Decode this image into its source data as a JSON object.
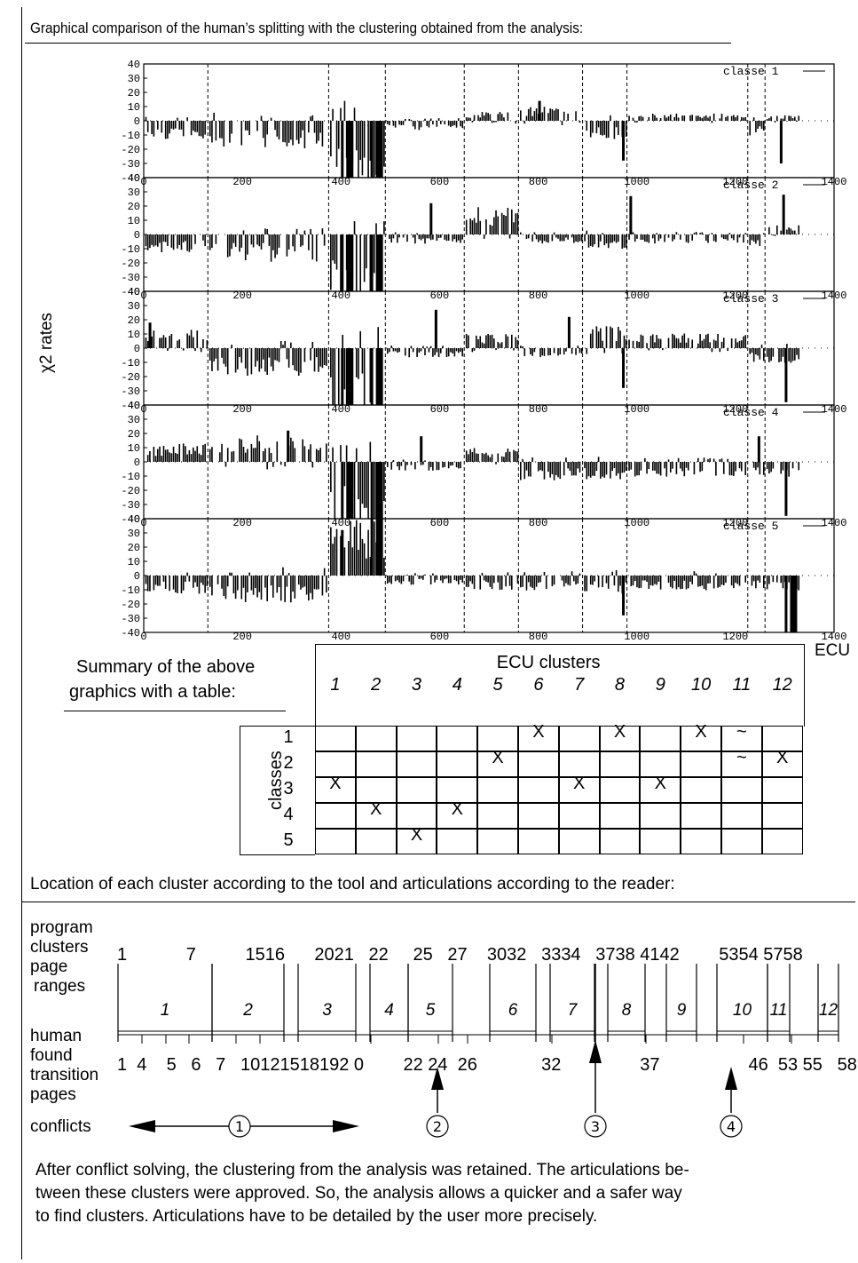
{
  "header": {
    "title": "Graphical comparison of the human’s splitting with the clustering obtained from the analysis:"
  },
  "chart_data": {
    "type": "bar",
    "ylabel": "χ2 rates",
    "xlabel": "ECU",
    "xlim": [
      0,
      1400
    ],
    "ylim": [
      -40,
      40
    ],
    "x_ticks": [
      0,
      200,
      400,
      600,
      800,
      1000,
      1200,
      1400
    ],
    "y_ticks": [
      40,
      30,
      20,
      10,
      0,
      -10,
      -20,
      -30,
      -40
    ],
    "cluster_boundaries": [
      130,
      375,
      490,
      650,
      760,
      890,
      980,
      1225,
      1260
    ],
    "panels": [
      {
        "name": "classe 1",
        "level_by_cluster": [
          -10,
          -15,
          -40,
          -5,
          5,
          8,
          -10,
          4,
          -8,
          3,
          -25,
          -5,
          3
        ],
        "spikes": [
          {
            "x": 400,
            "y": -40
          },
          {
            "x": 460,
            "y": -40
          },
          {
            "x": 800,
            "y": 14
          },
          {
            "x": 970,
            "y": -28
          },
          {
            "x": 1290,
            "y": -30
          }
        ]
      },
      {
        "name": "classe 2",
        "level_by_cluster": [
          -10,
          -15,
          -40,
          -5,
          15,
          -5,
          -8,
          -5,
          -8,
          5,
          -8,
          -8,
          12
        ],
        "spikes": [
          {
            "x": 400,
            "y": -40
          },
          {
            "x": 460,
            "y": -40
          },
          {
            "x": 580,
            "y": 22
          },
          {
            "x": 985,
            "y": 27
          },
          {
            "x": 1295,
            "y": 28
          }
        ]
      },
      {
        "name": "classe 3",
        "level_by_cluster": [
          10,
          -15,
          -40,
          -5,
          8,
          -5,
          12,
          8,
          -8,
          -8,
          -10,
          -8,
          -10
        ],
        "spikes": [
          {
            "x": 10,
            "y": 18
          },
          {
            "x": 400,
            "y": -40
          },
          {
            "x": 460,
            "y": -40
          },
          {
            "x": 590,
            "y": 27
          },
          {
            "x": 860,
            "y": 22
          },
          {
            "x": 970,
            "y": -28
          },
          {
            "x": 1300,
            "y": -38
          }
        ]
      },
      {
        "name": "classe 4",
        "level_by_cluster": [
          10,
          15,
          -40,
          -5,
          8,
          -10,
          -10,
          -8,
          -8,
          -8,
          -10,
          5,
          -10
        ],
        "spikes": [
          {
            "x": 290,
            "y": 22
          },
          {
            "x": 400,
            "y": -40
          },
          {
            "x": 460,
            "y": -40
          },
          {
            "x": 560,
            "y": 18
          },
          {
            "x": 1245,
            "y": 18
          },
          {
            "x": 1300,
            "y": -38
          }
        ]
      },
      {
        "name": "classe 5",
        "level_by_cluster": [
          -10,
          -15,
          30,
          -5,
          -8,
          -8,
          -10,
          -8,
          -8,
          -8,
          -10,
          -8,
          -10
        ],
        "spikes": [
          {
            "x": 400,
            "y": 32
          },
          {
            "x": 460,
            "y": 40
          },
          {
            "x": 970,
            "y": -28
          },
          {
            "x": 1300,
            "y": -40
          }
        ]
      }
    ]
  },
  "summary": {
    "caption": "Summary of the above graphics with a table:",
    "caption_line1": "Summary of the above",
    "caption_line2": "graphics with a table:",
    "col_group_label": "ECU clusters",
    "row_group_label": "classes",
    "columns": [
      "1",
      "2",
      "3",
      "4",
      "5",
      "6",
      "7",
      "8",
      "9",
      "10",
      "11",
      "12"
    ],
    "rows": [
      {
        "label": "1",
        "cells": [
          "",
          "",
          "",
          "",
          "",
          "X",
          "",
          "X",
          "",
          "X",
          "~",
          ""
        ]
      },
      {
        "label": "2",
        "cells": [
          "",
          "",
          "",
          "",
          "X",
          "",
          "",
          "",
          "",
          "",
          "~",
          "X"
        ]
      },
      {
        "label": "3",
        "cells": [
          "X",
          "",
          "",
          "",
          "",
          "",
          "X",
          "",
          "X",
          "",
          "",
          ""
        ]
      },
      {
        "label": "4",
        "cells": [
          "",
          "X",
          "",
          "X",
          "",
          "",
          "",
          "",
          "",
          "",
          "",
          ""
        ]
      },
      {
        "label": "5",
        "cells": [
          "",
          "",
          "X",
          "",
          "",
          "",
          "",
          "",
          "",
          "",
          "",
          ""
        ]
      }
    ]
  },
  "location": {
    "caption": "Location of each cluster according to the tool and articulations according to the reader:",
    "label_program_clusters": "program clusters",
    "label_program": "program",
    "label_clusters": "clusters",
    "label_page": "page",
    "label_ranges": "ranges",
    "label_human": "human",
    "label_found": "found",
    "label_transition": "transition",
    "label_pages": "pages",
    "label_conflicts": "conflicts",
    "page_ranges_text": "1            7          1516      2021   22     25   27    3032   3334   3738 4142        5354 5758",
    "cluster_labels": [
      "1",
      "2",
      "3",
      "4",
      "5",
      "6",
      "7",
      "8",
      "9",
      "10",
      "11",
      "12"
    ],
    "human_pages_text": "1  4    5   6   7   10121518192 0        22 24  26             32                37                  46  53 55   58",
    "conflicts": [
      "①",
      "②",
      "③",
      "④"
    ]
  },
  "footer": {
    "paragraph": "After conflict solving, the clustering from the analysis was retained. The articulations be-tween these clusters were approved. So, the analysis allows a quicker and a safer way to find clusters. Articulations have to be detailed by the user more precisely.",
    "line1": "After conflict solving, the clustering from the analysis was retained. The articulations be-",
    "line2": "tween these clusters were approved. So, the analysis allows a quicker and a safer way",
    "line3": "to find clusters. Articulations have to be detailed by the user more precisely."
  }
}
